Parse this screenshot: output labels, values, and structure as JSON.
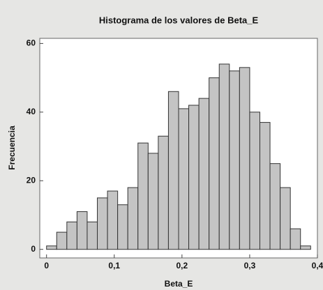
{
  "chart_data": {
    "type": "histogram",
    "title": "Histograma de los valores de Beta_E",
    "xlabel": "Beta_E",
    "ylabel": "Frecuencia",
    "bins": [
      0,
      0.015,
      0.03,
      0.045,
      0.06,
      0.075,
      0.09,
      0.105,
      0.12,
      0.135,
      0.15,
      0.165,
      0.18,
      0.195,
      0.21,
      0.225,
      0.24,
      0.255,
      0.27,
      0.285,
      0.3,
      0.315,
      0.33,
      0.345,
      0.36,
      0.375,
      0.39
    ],
    "values": [
      1,
      5,
      8,
      11,
      8,
      15,
      17,
      13,
      18,
      31,
      28,
      33,
      46,
      41,
      42,
      44,
      50,
      54,
      52,
      53,
      40,
      37,
      25,
      18,
      6,
      1
    ],
    "color": "#c4c4c4",
    "xlim": [
      -0.01,
      0.4
    ],
    "ylim": [
      -2.5,
      61.5
    ],
    "xticks": [
      0,
      {
        "value": 0.1,
        "label": "0,1"
      },
      {
        "value": 0.2,
        "label": "0,2"
      },
      {
        "value": 0.3,
        "label": "0,3"
      },
      {
        "value": 0.4,
        "label": "0,4"
      }
    ],
    "yticks": [
      0,
      20,
      40,
      60
    ]
  }
}
